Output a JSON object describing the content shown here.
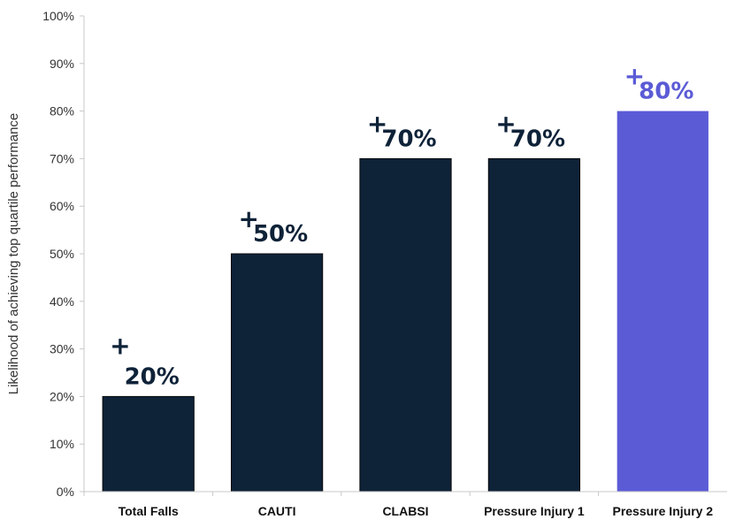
{
  "chart_data": {
    "type": "bar",
    "title": "",
    "xlabel": "",
    "ylabel": "Likelihood of achieving top quartile performance",
    "categories": [
      "Total Falls",
      "CAUTI",
      "CLABSI",
      "Pressure Injury 1",
      "Pressure Injury 2"
    ],
    "values": [
      20,
      50,
      70,
      70,
      80
    ],
    "data_labels": [
      "20%",
      "50%",
      "70%",
      "70%",
      "80%"
    ],
    "data_label_prefix": "+",
    "ylim": [
      0,
      100
    ],
    "y_ticks": [
      0,
      10,
      20,
      30,
      40,
      50,
      60,
      70,
      80,
      90,
      100
    ],
    "y_tick_labels": [
      "0%",
      "10%",
      "20%",
      "30%",
      "40%",
      "50%",
      "60%",
      "70%",
      "80%",
      "90%",
      "100%"
    ],
    "grid": false,
    "legend": "none",
    "colors": {
      "bar": "#0e2238",
      "highlight_bar": "#5b5bd6",
      "axis": "#c8c8c8"
    },
    "highlight_index": 4
  }
}
